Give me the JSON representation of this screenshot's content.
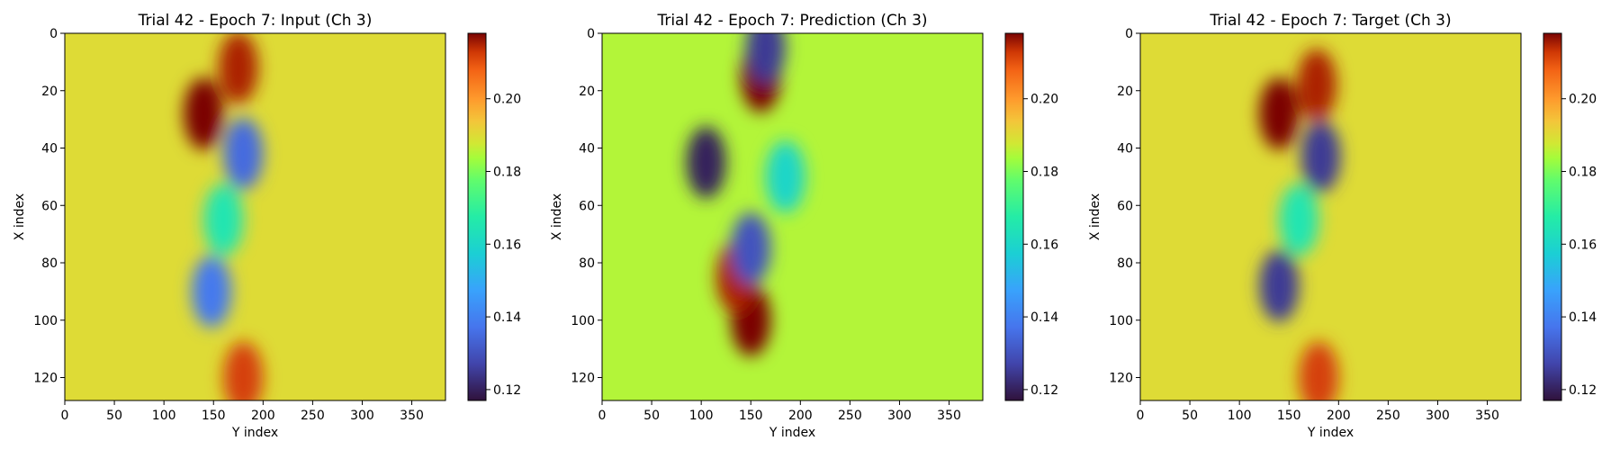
{
  "chart_data": [
    {
      "type": "heatmap",
      "title": "Trial 42 - Epoch 7: Input (Ch 3)",
      "xlabel": "Y index",
      "ylabel": "X index",
      "xlim": [
        0,
        384
      ],
      "ylim": [
        128,
        0
      ],
      "xticks": [
        "0",
        "50",
        "100",
        "150",
        "200",
        "250",
        "300",
        "350"
      ],
      "yticks": [
        "0",
        "20",
        "40",
        "60",
        "80",
        "100",
        "120"
      ],
      "colormap": "turbo",
      "vmin": 0.117,
      "vmax": 0.218,
      "colorbar_ticks": [
        "0.12",
        "0.14",
        "0.16",
        "0.18",
        "0.20"
      ],
      "background_value": 0.19,
      "features": [
        {
          "x": 140,
          "y": 28,
          "value": 0.218
        },
        {
          "x": 175,
          "y": 12,
          "value": 0.215
        },
        {
          "x": 180,
          "y": 42,
          "value": 0.135
        },
        {
          "x": 148,
          "y": 90,
          "value": 0.138
        },
        {
          "x": 180,
          "y": 120,
          "value": 0.212
        },
        {
          "x": 160,
          "y": 65,
          "value": 0.165
        }
      ]
    },
    {
      "type": "heatmap",
      "title": "Trial 42 - Epoch 7: Prediction (Ch 3)",
      "xlabel": "Y index",
      "ylabel": "X index",
      "xlim": [
        0,
        384
      ],
      "ylim": [
        128,
        0
      ],
      "xticks": [
        "0",
        "50",
        "100",
        "150",
        "200",
        "250",
        "300",
        "350"
      ],
      "yticks": [
        "0",
        "20",
        "40",
        "60",
        "80",
        "100",
        "120"
      ],
      "colormap": "turbo",
      "vmin": 0.117,
      "vmax": 0.218,
      "colorbar_ticks": [
        "0.12",
        "0.14",
        "0.16",
        "0.18",
        "0.20"
      ],
      "background_value": 0.185,
      "features": [
        {
          "x": 160,
          "y": 15,
          "value": 0.218
        },
        {
          "x": 165,
          "y": 5,
          "value": 0.125
        },
        {
          "x": 105,
          "y": 45,
          "value": 0.12
        },
        {
          "x": 150,
          "y": 100,
          "value": 0.218
        },
        {
          "x": 135,
          "y": 85,
          "value": 0.215
        },
        {
          "x": 185,
          "y": 50,
          "value": 0.16
        },
        {
          "x": 150,
          "y": 75,
          "value": 0.13
        }
      ]
    },
    {
      "type": "heatmap",
      "title": "Trial 42 - Epoch 7: Target (Ch 3)",
      "xlabel": "Y index",
      "ylabel": "X index",
      "xlim": [
        0,
        384
      ],
      "ylim": [
        128,
        0
      ],
      "xticks": [
        "0",
        "50",
        "100",
        "150",
        "200",
        "250",
        "300",
        "350"
      ],
      "yticks": [
        "0",
        "20",
        "40",
        "60",
        "80",
        "100",
        "120"
      ],
      "colormap": "turbo",
      "vmin": 0.117,
      "vmax": 0.218,
      "colorbar_ticks": [
        "0.12",
        "0.14",
        "0.16",
        "0.18",
        "0.20"
      ],
      "background_value": 0.19,
      "features": [
        {
          "x": 140,
          "y": 28,
          "value": 0.218
        },
        {
          "x": 178,
          "y": 18,
          "value": 0.215
        },
        {
          "x": 182,
          "y": 43,
          "value": 0.125
        },
        {
          "x": 140,
          "y": 88,
          "value": 0.125
        },
        {
          "x": 180,
          "y": 120,
          "value": 0.212
        },
        {
          "x": 160,
          "y": 65,
          "value": 0.165
        }
      ]
    }
  ]
}
